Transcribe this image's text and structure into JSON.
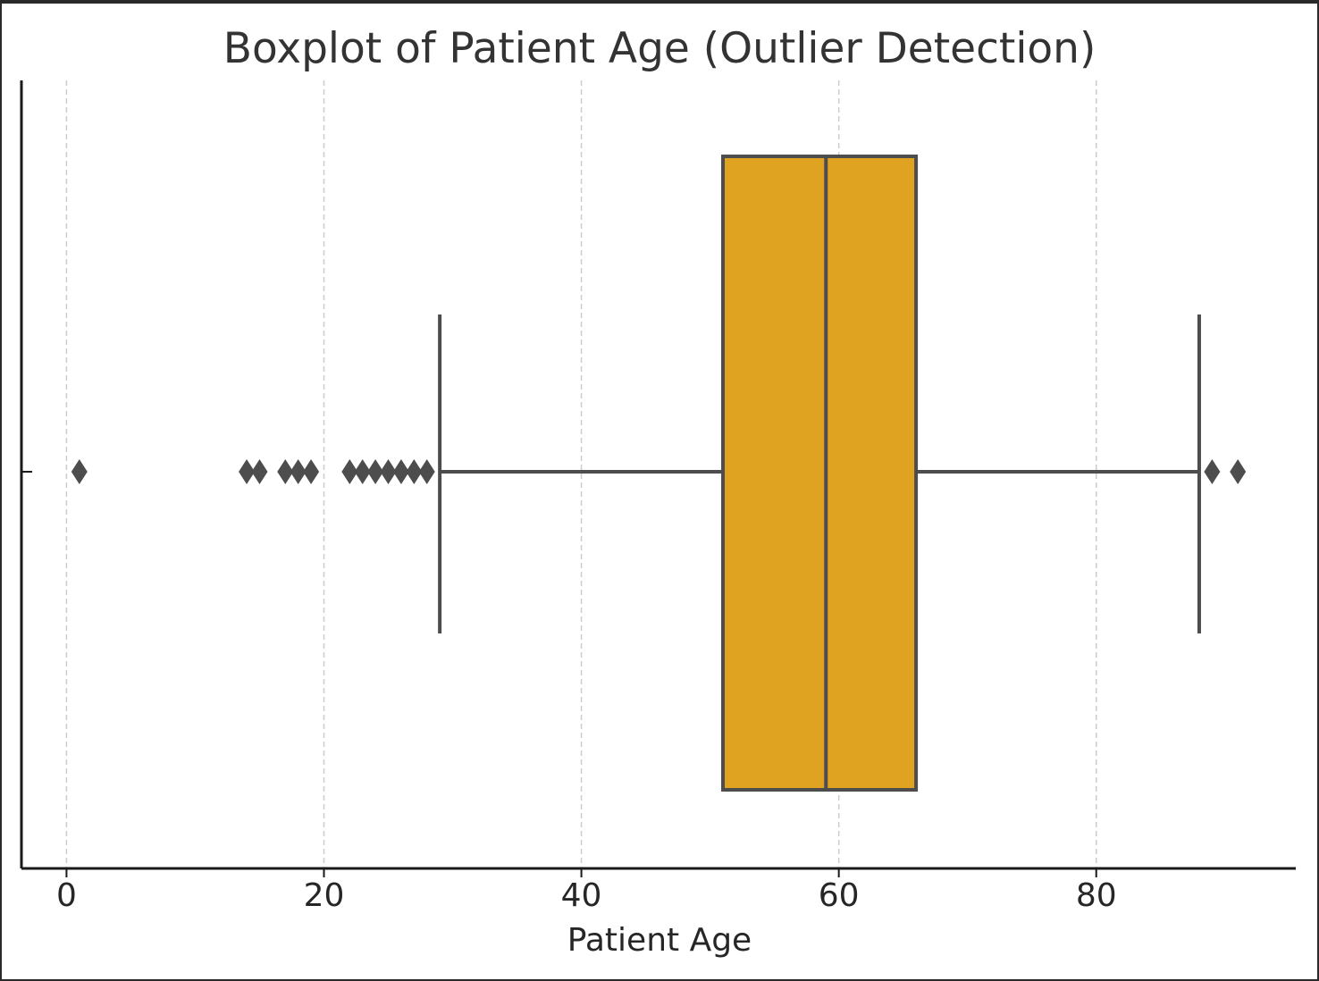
{
  "chart_data": {
    "type": "boxplot",
    "title": "Boxplot of Patient Age (Outlier Detection)",
    "xlabel": "Patient Age",
    "ylabel": "",
    "orientation": "horizontal",
    "xlim": [
      -3.5,
      95.5
    ],
    "xticks": [
      0,
      20,
      40,
      60,
      80
    ],
    "grid": "x dashed",
    "box": {
      "whisker_low": 29,
      "q1": 51,
      "median": 59,
      "q3": 66,
      "whisker_high": 88
    },
    "outliers": [
      1,
      14,
      15,
      17,
      18,
      19,
      22,
      23,
      24,
      25,
      26,
      27,
      28,
      89,
      91
    ],
    "colors": {
      "box_fill": "#DFA321",
      "line": "#4d4d4d",
      "grid": "#cccccc",
      "axis": "#1a1a1a"
    }
  }
}
